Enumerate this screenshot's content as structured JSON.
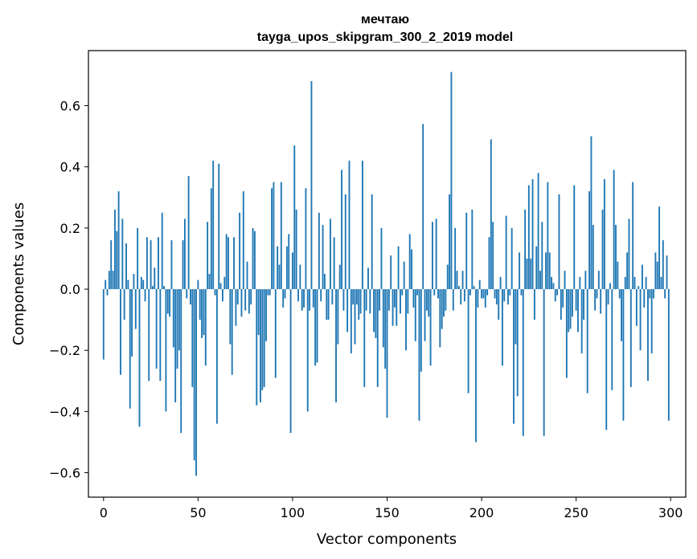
{
  "chart_data": {
    "type": "bar",
    "title": "мечтаю",
    "subtitle": "tayga_upos_skipgram_300_2_2019 model",
    "xlabel": "Vector components",
    "ylabel": "Components values",
    "xlim": [
      -8,
      308
    ],
    "ylim": [
      -0.68,
      0.78
    ],
    "xticks": [
      0,
      50,
      100,
      150,
      200,
      250,
      300
    ],
    "yticks": [
      -0.6,
      -0.4,
      -0.2,
      0.0,
      0.2,
      0.4,
      0.6
    ],
    "ytick_labels": [
      "−0.6",
      "−0.4",
      "−0.2",
      "0.0",
      "0.2",
      "0.4",
      "0.6"
    ],
    "bar_color": "#1f77b4",
    "values": [
      -0.23,
      0.03,
      -0.02,
      0.06,
      0.16,
      0.06,
      0.26,
      0.19,
      0.32,
      -0.28,
      0.23,
      -0.1,
      0.15,
      0.03,
      -0.39,
      -0.22,
      0.05,
      -0.13,
      0.2,
      -0.45,
      0.04,
      0.03,
      -0.04,
      0.17,
      -0.3,
      0.16,
      0.01,
      0.07,
      -0.26,
      0.17,
      -0.3,
      0.25,
      0.01,
      -0.4,
      -0.08,
      -0.09,
      0.16,
      -0.19,
      -0.37,
      -0.26,
      -0.2,
      -0.47,
      0.16,
      0.23,
      -0.03,
      0.37,
      -0.05,
      -0.32,
      -0.56,
      -0.61,
      0.03,
      -0.1,
      -0.16,
      -0.15,
      -0.25,
      0.22,
      0.05,
      0.33,
      0.42,
      -0.02,
      -0.44,
      0.41,
      0.02,
      -0.04,
      0.04,
      0.18,
      0.17,
      -0.18,
      -0.28,
      0.17,
      -0.12,
      -0.05,
      0.25,
      -0.09,
      0.32,
      -0.07,
      0.09,
      -0.08,
      -0.05,
      0.2,
      0.19,
      -0.38,
      -0.15,
      -0.37,
      -0.33,
      -0.32,
      -0.17,
      -0.02,
      -0.02,
      0.33,
      0.35,
      -0.29,
      0.14,
      0.08,
      0.35,
      -0.06,
      -0.03,
      0.14,
      0.18,
      -0.47,
      0.12,
      0.47,
      0.26,
      -0.04,
      0.08,
      -0.07,
      -0.06,
      0.33,
      -0.4,
      -0.07,
      0.68,
      -0.06,
      -0.25,
      -0.24,
      0.25,
      -0.04,
      0.21,
      0.05,
      -0.1,
      -0.1,
      0.23,
      -0.05,
      0.17,
      -0.37,
      -0.18,
      0.08,
      0.39,
      -0.07,
      0.31,
      -0.14,
      0.42,
      -0.21,
      -0.05,
      -0.18,
      -0.05,
      -0.1,
      -0.08,
      0.42,
      -0.32,
      -0.07,
      0.07,
      -0.08,
      0.31,
      -0.14,
      -0.16,
      -0.32,
      -0.07,
      0.2,
      -0.19,
      -0.26,
      -0.42,
      -0.07,
      0.11,
      -0.12,
      -0.06,
      -0.12,
      0.14,
      -0.08,
      -0.02,
      0.09,
      -0.2,
      -0.08,
      0.18,
      0.13,
      -0.06,
      -0.17,
      -0.02,
      -0.43,
      -0.27,
      0.54,
      -0.17,
      -0.07,
      -0.09,
      -0.25,
      0.22,
      -0.02,
      0.23,
      -0.03,
      -0.19,
      -0.13,
      -0.09,
      -0.07,
      0.08,
      0.31,
      0.71,
      -0.07,
      0.2,
      0.06,
      0.01,
      -0.05,
      0.06,
      -0.04,
      0.25,
      -0.34,
      -0.02,
      0.26,
      0.01,
      -0.5,
      -0.06,
      0.03,
      -0.03,
      -0.03,
      -0.06,
      -0.02,
      0.17,
      0.49,
      0.22,
      -0.03,
      -0.05,
      -0.1,
      0.04,
      -0.25,
      -0.04,
      0.24,
      -0.05,
      -0.02,
      0.2,
      -0.44,
      -0.18,
      -0.35,
      0.12,
      -0.02,
      -0.48,
      0.26,
      0.1,
      0.34,
      0.1,
      0.36,
      -0.1,
      0.14,
      0.38,
      0.06,
      0.22,
      -0.48,
      0.12,
      0.35,
      0.12,
      0.04,
      0.02,
      -0.04,
      -0.02,
      0.31,
      -0.1,
      -0.06,
      0.06,
      -0.29,
      -0.14,
      -0.13,
      -0.09,
      0.34,
      -0.07,
      -0.14,
      0.04,
      -0.21,
      -0.1,
      0.06,
      -0.34,
      0.32,
      0.5,
      0.21,
      -0.07,
      -0.03,
      0.06,
      -0.08,
      0.26,
      0.36,
      -0.46,
      -0.05,
      0.02,
      -0.33,
      0.39,
      0.21,
      0.09,
      -0.03,
      -0.17,
      -0.43,
      0.04,
      0.12,
      0.23,
      -0.32,
      0.35,
      0.04,
      -0.12,
      0.01,
      -0.2,
      0.08,
      -0.06,
      0.04,
      -0.3,
      -0.03,
      -0.21,
      -0.03,
      0.12,
      0.09,
      0.27,
      0.04,
      0.16,
      -0.03,
      0.11,
      -0.43
    ]
  }
}
